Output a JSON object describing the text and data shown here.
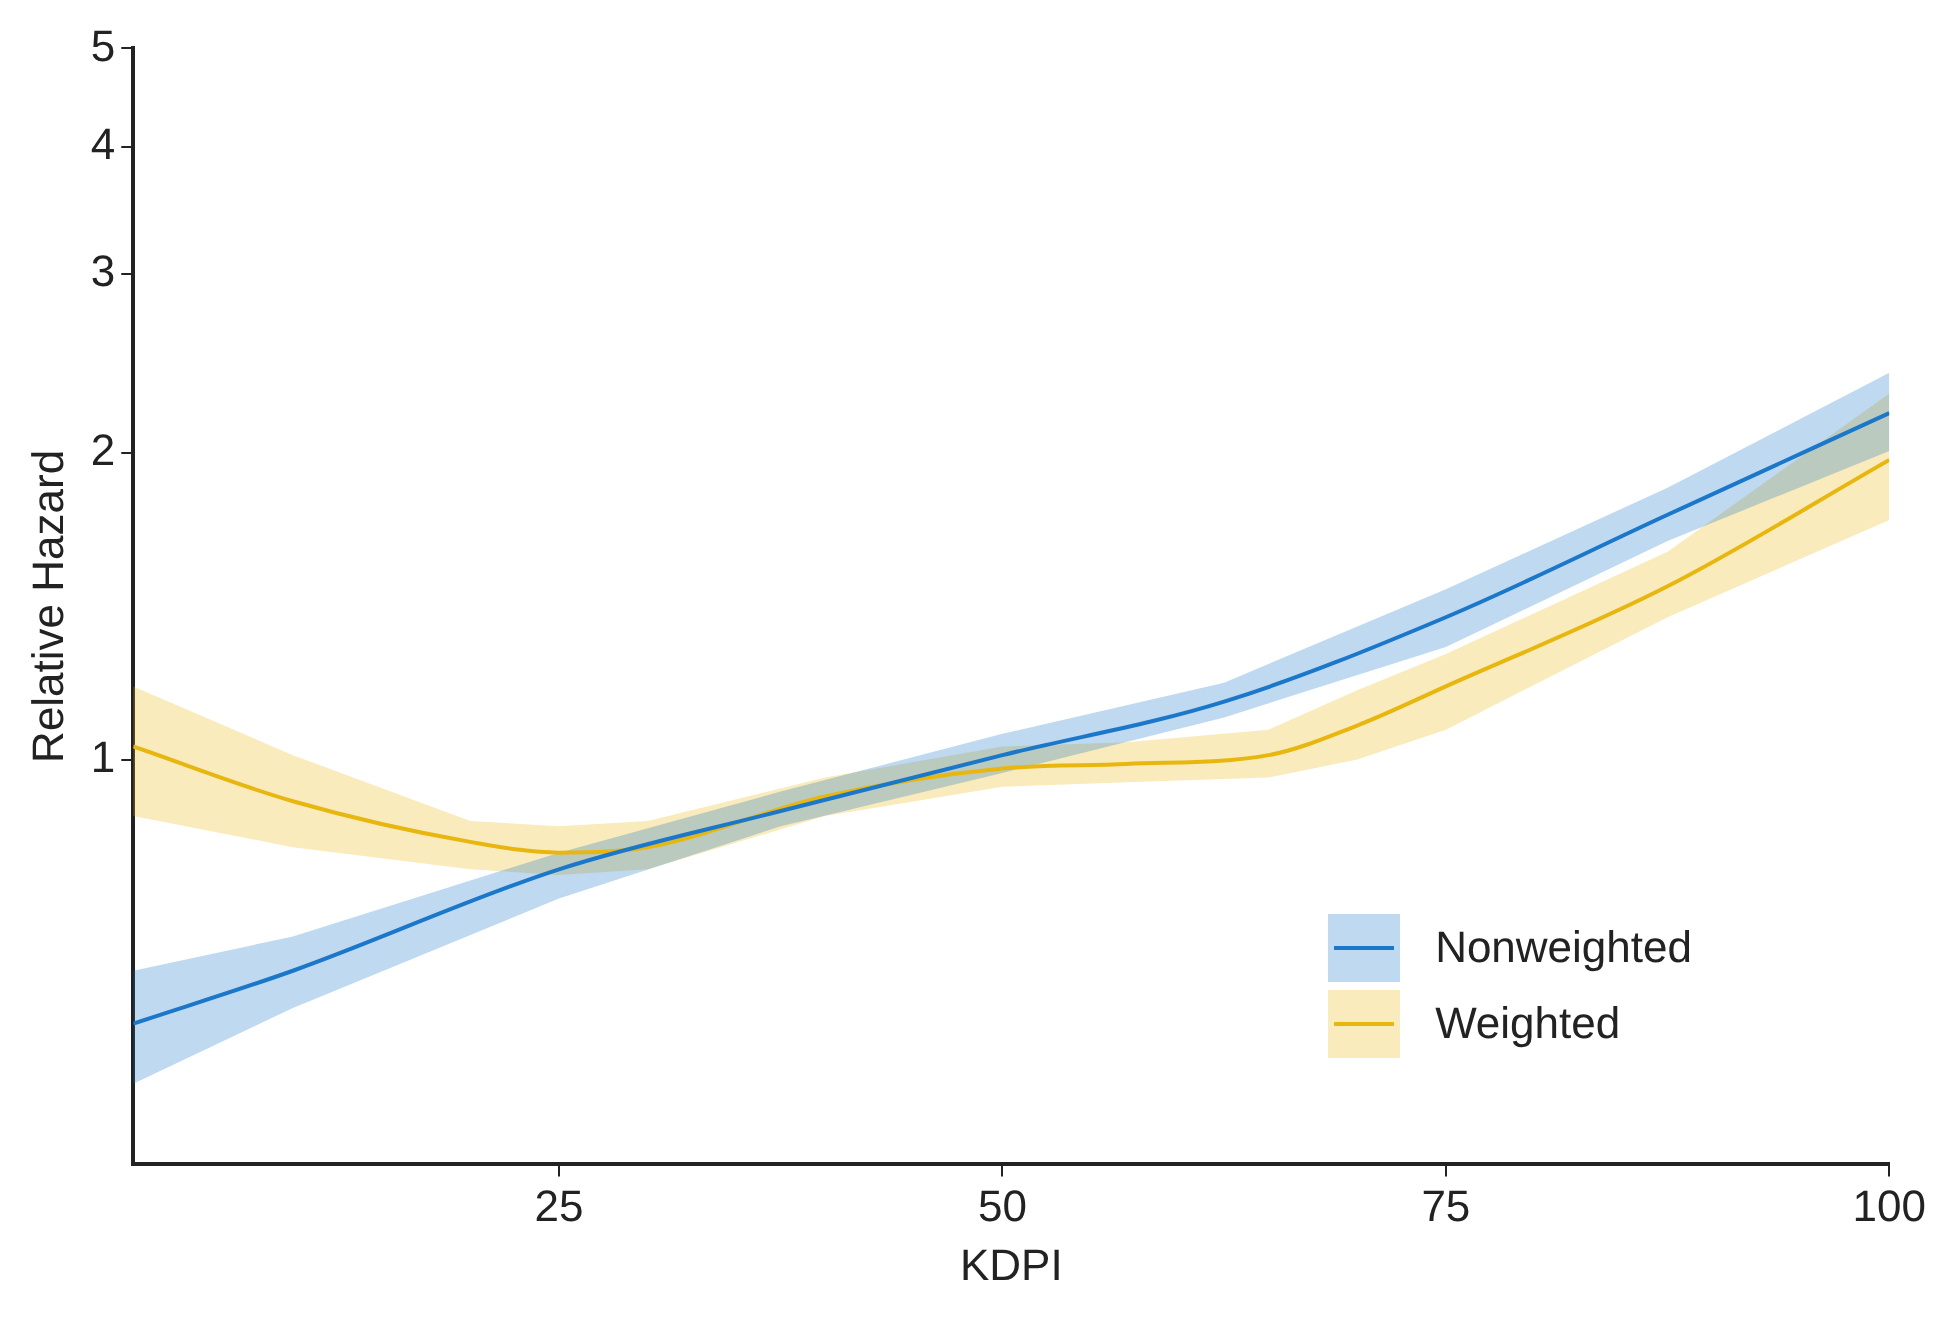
{
  "chart_data": {
    "type": "line",
    "xlabel": "KDPI",
    "ylabel": "Relative Hazard",
    "log": "y",
    "xlim": [
      1,
      100
    ],
    "xticks": [
      25,
      50,
      75,
      100
    ],
    "ylim": [
      0.4,
      5
    ],
    "yticks": [
      1,
      2,
      3,
      4,
      5
    ],
    "grid": false,
    "legend": "bottom right",
    "marker": "none",
    "line_style": "solid",
    "series": [
      {
        "name": "Nonweighted",
        "color": "#1a77c9",
        "x": [
          1,
          10,
          25,
          37.5,
          50,
          62.5,
          75,
          87.5,
          100
        ],
        "values": [
          0.55,
          0.62,
          0.78,
          0.89,
          1.01,
          1.14,
          1.38,
          1.74,
          2.19
        ],
        "lower": [
          0.48,
          0.57,
          0.73,
          0.86,
          0.97,
          1.1,
          1.29,
          1.64,
          2.01
        ],
        "upper": [
          0.62,
          0.67,
          0.81,
          0.93,
          1.06,
          1.19,
          1.47,
          1.85,
          2.4
        ]
      },
      {
        "name": "Weighted",
        "color": "#e8b70f",
        "x": [
          1,
          10,
          20,
          25,
          30,
          40,
          50,
          57,
          65,
          70,
          75,
          87.5,
          100
        ],
        "values": [
          1.03,
          0.91,
          0.83,
          0.81,
          0.82,
          0.92,
          0.98,
          0.99,
          1.01,
          1.08,
          1.18,
          1.48,
          1.97
        ],
        "lower": [
          0.88,
          0.82,
          0.78,
          0.77,
          0.78,
          0.88,
          0.94,
          0.95,
          0.96,
          1.0,
          1.07,
          1.38,
          1.72
        ],
        "upper": [
          1.18,
          1.01,
          0.87,
          0.86,
          0.87,
          0.96,
          1.03,
          1.04,
          1.07,
          1.17,
          1.27,
          1.6,
          2.29
        ]
      }
    ]
  }
}
